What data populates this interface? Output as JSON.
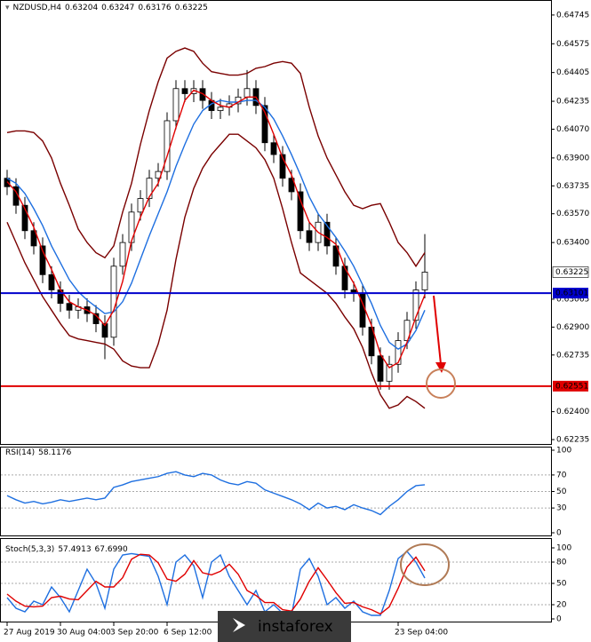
{
  "chart_data": [
    {
      "type": "candlestick",
      "symbol": "NZDUSD,H4",
      "quote": [
        0.63204,
        0.63247,
        0.63176,
        0.63225
      ],
      "categories": [
        "27 Aug 2019",
        null,
        null,
        null,
        null,
        null,
        "30 Aug 04:00",
        null,
        null,
        null,
        null,
        null,
        "3 Sep 20:00",
        null,
        null,
        null,
        null,
        null,
        "6 Sep 12:00",
        null,
        null,
        null,
        null,
        null,
        null,
        null,
        null,
        null,
        null,
        null,
        null,
        null,
        null,
        null,
        null,
        null,
        null,
        null,
        null,
        null,
        null,
        null,
        null,
        null,
        "23 Sep 04:00",
        null,
        null,
        null
      ],
      "open": [
        0.6378,
        0.6373,
        0.6362,
        0.6347,
        0.6338,
        0.6321,
        0.6312,
        0.6304,
        0.63,
        0.6302,
        0.6298,
        0.6292,
        0.6284,
        0.6326,
        0.634,
        0.6358,
        0.6366,
        0.6378,
        0.6382,
        0.6412,
        0.6431,
        0.6428,
        0.6431,
        0.6424,
        0.6418,
        0.642,
        0.6422,
        0.6426,
        0.6431,
        0.6421,
        0.6399,
        0.6392,
        0.6378,
        0.637,
        0.6347,
        0.634,
        0.6352,
        0.6338,
        0.6326,
        0.6312,
        0.631,
        0.629,
        0.6273,
        0.6258,
        0.6268,
        0.6282,
        0.6294,
        0.6312
      ],
      "high": [
        0.6383,
        0.6378,
        0.6367,
        0.6352,
        0.6343,
        0.6326,
        0.6317,
        0.6309,
        0.6307,
        0.6307,
        0.6303,
        0.6297,
        0.6331,
        0.6345,
        0.6363,
        0.6371,
        0.6383,
        0.6387,
        0.6417,
        0.6436,
        0.6436,
        0.6436,
        0.6436,
        0.6429,
        0.6425,
        0.6427,
        0.6431,
        0.6442,
        0.6436,
        0.6426,
        0.6404,
        0.6397,
        0.6383,
        0.6375,
        0.6352,
        0.6357,
        0.6357,
        0.6343,
        0.6331,
        0.6317,
        0.6315,
        0.6295,
        0.6278,
        0.6273,
        0.6287,
        0.6299,
        0.6317,
        0.6345
      ],
      "low": [
        0.6368,
        0.6357,
        0.6342,
        0.6333,
        0.6316,
        0.6307,
        0.6299,
        0.6295,
        0.6295,
        0.6293,
        0.6287,
        0.6271,
        0.6279,
        0.6321,
        0.6335,
        0.6353,
        0.6361,
        0.6373,
        0.6377,
        0.6407,
        0.6423,
        0.6423,
        0.6419,
        0.6413,
        0.6413,
        0.6415,
        0.6417,
        0.6421,
        0.6416,
        0.6394,
        0.6387,
        0.6373,
        0.6365,
        0.6342,
        0.6335,
        0.6335,
        0.6333,
        0.6321,
        0.6307,
        0.6305,
        0.6285,
        0.6268,
        0.6253,
        0.6253,
        0.6263,
        0.6277,
        0.6289,
        0.6307
      ],
      "close": [
        0.6373,
        0.6362,
        0.6347,
        0.6338,
        0.6321,
        0.6312,
        0.6304,
        0.63,
        0.6302,
        0.6298,
        0.6292,
        0.6284,
        0.6326,
        0.634,
        0.6358,
        0.6366,
        0.6378,
        0.6382,
        0.6412,
        0.6431,
        0.6428,
        0.6431,
        0.6424,
        0.6418,
        0.642,
        0.6422,
        0.6426,
        0.6431,
        0.6421,
        0.6399,
        0.6392,
        0.6378,
        0.637,
        0.6347,
        0.634,
        0.6352,
        0.6338,
        0.6326,
        0.6312,
        0.631,
        0.629,
        0.6273,
        0.6258,
        0.6268,
        0.6282,
        0.6294,
        0.6312,
        0.63225
      ],
      "up_color": "#ffffff",
      "down_color": "#000000",
      "series": [
        {
          "color": "#7a0000",
          "values": [
            0.6405,
            0.6406,
            0.6406,
            0.6405,
            0.64,
            0.639,
            0.6375,
            0.6362,
            0.6348,
            0.634,
            0.6334,
            0.6331,
            0.6338,
            0.6358,
            0.6375,
            0.6398,
            0.6418,
            0.6435,
            0.6449,
            0.6453,
            0.6455,
            0.6453,
            0.6446,
            0.6441,
            0.644,
            0.6439,
            0.6439,
            0.644,
            0.6443,
            0.6444,
            0.6446,
            0.6447,
            0.6446,
            0.644,
            0.642,
            0.6403,
            0.639,
            0.638,
            0.637,
            0.6362,
            0.636,
            0.6362,
            0.6363,
            0.6352,
            0.634,
            0.6334,
            0.6326,
            0.6334
          ]
        },
        {
          "color": "#7a0000",
          "values": [
            0.6352,
            0.634,
            0.6328,
            0.6318,
            0.6308,
            0.63,
            0.6292,
            0.6285,
            0.6283,
            0.6282,
            0.6281,
            0.628,
            0.6277,
            0.627,
            0.6267,
            0.6266,
            0.6266,
            0.628,
            0.63,
            0.633,
            0.6355,
            0.6372,
            0.6384,
            0.6392,
            0.6398,
            0.6404,
            0.6404,
            0.64,
            0.6396,
            0.6389,
            0.6378,
            0.636,
            0.634,
            0.6322,
            0.6318,
            0.6314,
            0.631,
            0.6304,
            0.6296,
            0.6289,
            0.6278,
            0.6263,
            0.625,
            0.6242,
            0.6244,
            0.6249,
            0.6246,
            0.6242
          ]
        },
        {
          "color": "#1e6fe0",
          "values": [
            0.6378,
            0.6375,
            0.6369,
            0.636,
            0.635,
            0.6338,
            0.6328,
            0.6318,
            0.6311,
            0.6306,
            0.6302,
            0.6298,
            0.6299,
            0.6305,
            0.6316,
            0.633,
            0.6344,
            0.6357,
            0.637,
            0.6385,
            0.6398,
            0.641,
            0.6418,
            0.6422,
            0.6424,
            0.6423,
            0.6423,
            0.6424,
            0.6424,
            0.642,
            0.6413,
            0.6403,
            0.6392,
            0.638,
            0.6367,
            0.6357,
            0.635,
            0.6343,
            0.6335,
            0.6326,
            0.6315,
            0.6304,
            0.6291,
            0.6281,
            0.6277,
            0.628,
            0.6288,
            0.63
          ]
        },
        {
          "color": "#e00000",
          "values": [
            0.6376,
            0.637,
            0.636,
            0.6349,
            0.6335,
            0.6324,
            0.6312,
            0.6305,
            0.6302,
            0.63,
            0.6297,
            0.6291,
            0.63,
            0.6317,
            0.6341,
            0.6355,
            0.6367,
            0.6375,
            0.6391,
            0.6408,
            0.6424,
            0.643,
            0.6428,
            0.6424,
            0.6421,
            0.642,
            0.6423,
            0.6426,
            0.6426,
            0.6417,
            0.6404,
            0.639,
            0.638,
            0.6365,
            0.6352,
            0.6346,
            0.6343,
            0.6339,
            0.6325,
            0.6316,
            0.6304,
            0.6291,
            0.6274,
            0.6266,
            0.6269,
            0.6281,
            0.6296,
            0.6309
          ]
        }
      ],
      "hlines": [
        {
          "value": 0.63101,
          "color": "#0000cc"
        },
        {
          "value": 0.62551,
          "color": "#e00000"
        }
      ],
      "ylim": [
        0.62209,
        0.64818
      ],
      "yticks": [
        0.64745,
        0.64575,
        0.64405,
        0.64235,
        {
          "value": 0.6407,
          "label": "0.64070"
        },
        {
          "value": 0.639,
          "label": "0.63900"
        },
        0.63735,
        {
          "value": 0.6357,
          "label": "0.63570"
        },
        {
          "value": 0.634,
          "label": "0.63400"
        },
        0.63065,
        {
          "value": 0.629,
          "label": "0.62900"
        },
        0.62735,
        {
          "value": 0.624,
          "label": "0.62400"
        },
        0.62235
      ],
      "watermark": "instaforex"
    },
    {
      "type": "line",
      "title": "RSI(14)",
      "values": [
        58.1176
      ],
      "series": [
        {
          "color": "#1e6fe0",
          "values": [
            45,
            40,
            36,
            38,
            35,
            37,
            40,
            38,
            40,
            42,
            40,
            42,
            55,
            58,
            62,
            64,
            66,
            68,
            72,
            74,
            70,
            68,
            72,
            70,
            64,
            60,
            58,
            62,
            60,
            52,
            48,
            44,
            40,
            35,
            28,
            36,
            30,
            32,
            28,
            34,
            30,
            27,
            22,
            32,
            40,
            50,
            57,
            58.1176
          ]
        }
      ],
      "ylim": [
        0,
        100
      ],
      "yticks": [
        100,
        70,
        50,
        30,
        0
      ]
    },
    {
      "type": "line",
      "title": "Stoch(5,3,3)",
      "values": [
        57.4913,
        67.699
      ],
      "value_labels": [
        "57.4913",
        "67.6990"
      ],
      "series": [
        {
          "color": "#1e6fe0",
          "values": [
            30,
            15,
            10,
            25,
            20,
            45,
            30,
            10,
            40,
            70,
            50,
            15,
            70,
            90,
            92,
            90,
            88,
            60,
            20,
            80,
            90,
            75,
            30,
            80,
            90,
            60,
            40,
            20,
            40,
            10,
            20,
            8,
            5,
            70,
            85,
            60,
            20,
            30,
            15,
            25,
            10,
            5,
            5,
            40,
            85,
            95,
            80,
            57.4913
          ]
        },
        {
          "color": "#e00000",
          "values": [
            35,
            25,
            18,
            17,
            18,
            30,
            32,
            28,
            27,
            40,
            53,
            45,
            45,
            58,
            84,
            91,
            90,
            79,
            56,
            53,
            63,
            82,
            65,
            62,
            67,
            77,
            63,
            40,
            33,
            23,
            23,
            13,
            11,
            28,
            53,
            72,
            55,
            37,
            22,
            23,
            17,
            13,
            7,
            17,
            43,
            73,
            87,
            67.699
          ]
        }
      ],
      "ylim": [
        0,
        100
      ],
      "yticks": [
        100,
        80,
        50,
        20,
        0
      ]
    }
  ]
}
